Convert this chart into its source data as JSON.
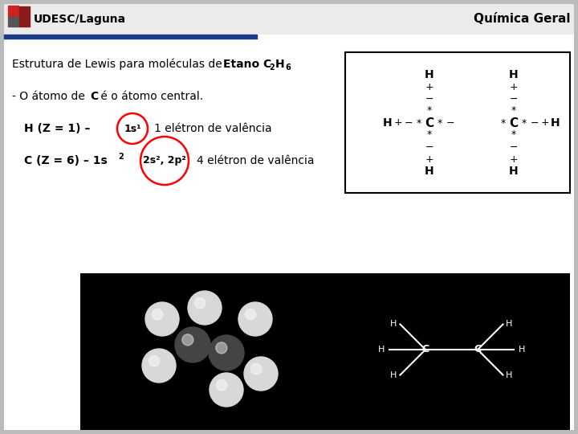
{
  "title_right": "Química Geral",
  "logo_text": "UDESC/Laguna",
  "bg_color": "#cccccc",
  "slide_bg": "#ffffff",
  "header_bg": "#e8e8e8",
  "header_line_color": "#1a3a8a",
  "heading_normal": "Estrutura de Lewis para moléculas de ",
  "heading_bold": "Etano C",
  "heading_sub2": "2",
  "heading_bold2": "H",
  "heading_sub6": "6",
  "line1_normal": "- O átomo de ",
  "line1_bold": "C",
  "line1_rest": " é o átomo central.",
  "line2_pre": "H (Z = 1) – ",
  "line2_circle": "1s¹",
  "line2_post": "1 elétron de valência",
  "line3_pre": "C (Z = 6) – 1s",
  "line3_sup2": "2",
  "line3_circle": "2s², 2p²",
  "line3_post": "4 elétron de valência"
}
